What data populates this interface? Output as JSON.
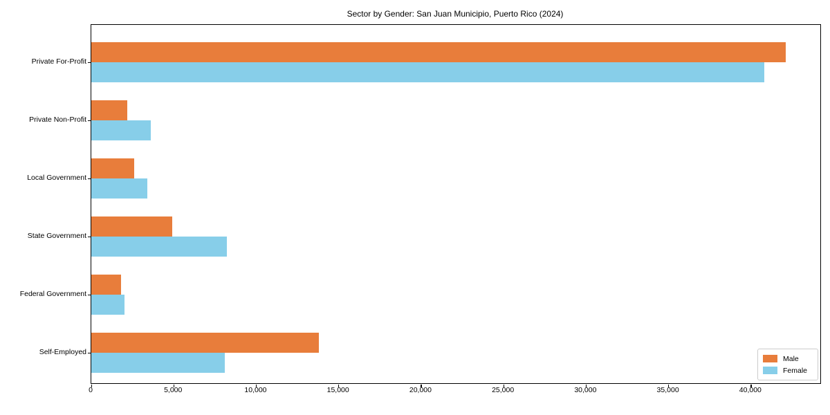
{
  "chart_data": {
    "type": "bar",
    "orientation": "horizontal",
    "title": "Sector by Gender: San Juan Municipio, Puerto Rico (2024)",
    "categories": [
      "Private For-Profit",
      "Private Non-Profit",
      "Local Government",
      "State Government",
      "Federal Government",
      "Self-Employed"
    ],
    "series": [
      {
        "name": "Male",
        "color": "#e87d3b",
        "values": [
          42100,
          2200,
          2600,
          4900,
          1800,
          13800
        ]
      },
      {
        "name": "Female",
        "color": "#87cee9",
        "values": [
          40800,
          3600,
          3400,
          8200,
          2000,
          8100
        ]
      }
    ],
    "xlabel": "",
    "ylabel": "",
    "xlim": [
      0,
      44200
    ],
    "x_ticks": [
      0,
      5000,
      10000,
      15000,
      20000,
      25000,
      30000,
      35000,
      40000
    ],
    "tick_format": "comma",
    "legend_position": "lower right",
    "grid": false
  }
}
